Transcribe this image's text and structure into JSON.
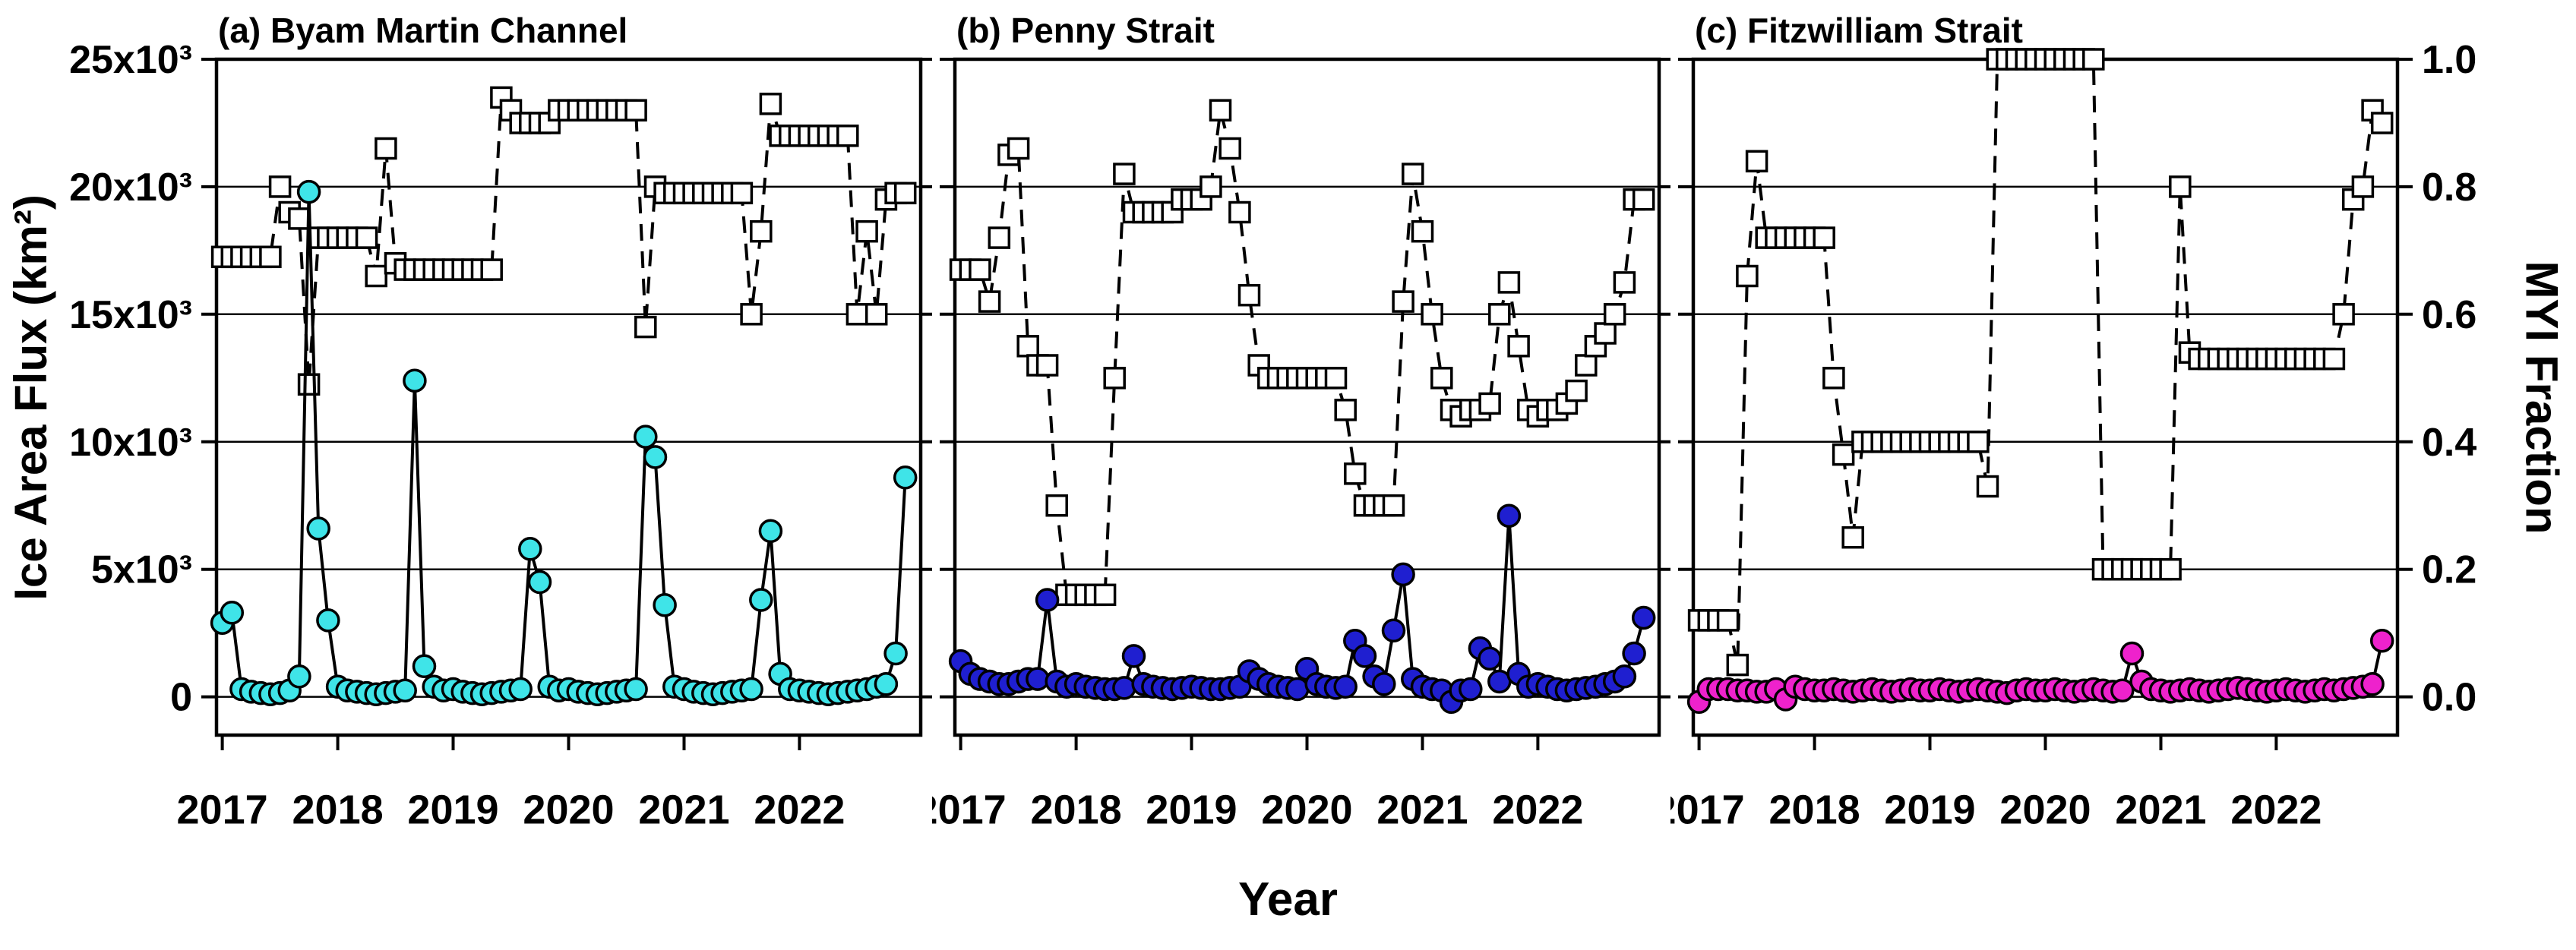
{
  "figure": {
    "left_axis_title": "Ice Area Flux (km²)",
    "right_axis_title": "MYI Fraction",
    "x_axis_title": "Year",
    "background": "#FFFFFF",
    "axis_color": "#000000"
  },
  "chart_data": [
    {
      "type": "line",
      "title": "(a) Byam Martin Channel",
      "x_range": [
        2016.95,
        2023.05
      ],
      "x_start": 2017.0,
      "x_step": 0.083333,
      "x_ticks": [
        2017,
        2018,
        2019,
        2020,
        2021,
        2022
      ],
      "left_axis": {
        "label": "Ice Area Flux (km²)",
        "range": [
          -1500,
          25000
        ],
        "ticks": [
          0,
          5000,
          10000,
          15000,
          20000,
          25000
        ],
        "tick_labels": [
          "0",
          "5x10³",
          "10x10³",
          "15x10³",
          "20x10³",
          "25x10³"
        ]
      },
      "right_axis": {
        "label": "MYI Fraction",
        "range": [
          -0.06,
          1.0
        ],
        "ticks": [
          0,
          0.2,
          0.4,
          0.6,
          0.8,
          1.0
        ],
        "tick_labels": [
          "0.0",
          "0.2",
          "0.4",
          "0.6",
          "0.8",
          "1.0"
        ]
      },
      "series": [
        {
          "name": "Ice Area Flux",
          "axis": "left",
          "marker": "circle",
          "line": "solid",
          "color": "#3FE4E8",
          "values": [
            2900,
            3300,
            300,
            200,
            150,
            100,
            150,
            250,
            800,
            19800,
            6600,
            3000,
            400,
            250,
            200,
            150,
            100,
            150,
            200,
            250,
            12400,
            1200,
            400,
            250,
            300,
            200,
            150,
            100,
            150,
            200,
            250,
            300,
            5800,
            4500,
            400,
            250,
            300,
            200,
            150,
            100,
            150,
            200,
            250,
            300,
            10200,
            9400,
            3600,
            400,
            300,
            200,
            150,
            100,
            150,
            200,
            250,
            300,
            3800,
            6500,
            900,
            300,
            250,
            200,
            150,
            100,
            150,
            200,
            250,
            300,
            400,
            500,
            1700,
            8600
          ]
        },
        {
          "name": "MYI Fraction",
          "axis": "right",
          "marker": "square",
          "line": "dashed",
          "color": "#FFFFFF",
          "values": [
            0.69,
            0.69,
            0.69,
            0.69,
            0.69,
            0.69,
            0.8,
            0.76,
            0.75,
            0.49,
            0.72,
            0.72,
            0.72,
            0.72,
            0.72,
            0.72,
            0.66,
            0.86,
            0.68,
            0.67,
            0.67,
            0.67,
            0.67,
            0.67,
            0.67,
            0.67,
            0.67,
            0.67,
            0.67,
            0.94,
            0.92,
            0.9,
            0.9,
            0.9,
            0.9,
            0.92,
            0.92,
            0.92,
            0.92,
            0.92,
            0.92,
            0.92,
            0.92,
            0.92,
            0.58,
            0.8,
            0.79,
            0.79,
            0.79,
            0.79,
            0.79,
            0.79,
            0.79,
            0.79,
            0.79,
            0.6,
            0.73,
            0.93,
            0.88,
            0.88,
            0.88,
            0.88,
            0.88,
            0.88,
            0.88,
            0.88,
            0.6,
            0.73,
            0.6,
            0.78,
            0.79,
            0.79
          ]
        }
      ]
    },
    {
      "type": "line",
      "title": "(b) Penny Strait",
      "x_range": [
        2016.95,
        2023.05
      ],
      "x_start": 2017.0,
      "x_step": 0.083333,
      "x_ticks": [
        2017,
        2018,
        2019,
        2020,
        2021,
        2022
      ],
      "left_axis": {
        "label": "Ice Area Flux (km²)",
        "range": [
          -1500,
          25000
        ],
        "ticks": [
          0,
          5000,
          10000,
          15000,
          20000,
          25000
        ],
        "tick_labels": [
          "0",
          "5x10³",
          "10x10³",
          "15x10³",
          "20x10³",
          "25x10³"
        ]
      },
      "right_axis": {
        "label": "MYI Fraction",
        "range": [
          -0.06,
          1.0
        ],
        "ticks": [
          0,
          0.2,
          0.4,
          0.6,
          0.8,
          1.0
        ],
        "tick_labels": [
          "0.0",
          "0.2",
          "0.4",
          "0.6",
          "0.8",
          "1.0"
        ]
      },
      "series": [
        {
          "name": "Ice Area Flux",
          "axis": "left",
          "marker": "circle",
          "line": "solid",
          "color": "#1F1FD0",
          "values": [
            1400,
            900,
            700,
            600,
            500,
            500,
            600,
            700,
            700,
            3800,
            600,
            400,
            500,
            400,
            350,
            300,
            300,
            350,
            1600,
            500,
            400,
            350,
            300,
            350,
            400,
            350,
            300,
            300,
            350,
            400,
            1000,
            700,
            500,
            400,
            350,
            300,
            1100,
            500,
            400,
            350,
            400,
            2200,
            1600,
            800,
            500,
            2600,
            4800,
            700,
            400,
            300,
            250,
            -200,
            250,
            300,
            1900,
            1500,
            600,
            7100,
            900,
            400,
            500,
            400,
            300,
            250,
            300,
            350,
            400,
            500,
            600,
            800,
            1700,
            3100
          ]
        },
        {
          "name": "MYI Fraction",
          "axis": "right",
          "marker": "square",
          "line": "dashed",
          "color": "#FFFFFF",
          "values": [
            0.67,
            0.67,
            0.67,
            0.62,
            0.72,
            0.85,
            0.86,
            0.55,
            0.52,
            0.52,
            0.3,
            0.16,
            0.16,
            0.16,
            0.16,
            0.16,
            0.5,
            0.82,
            0.76,
            0.76,
            0.76,
            0.76,
            0.76,
            0.78,
            0.78,
            0.78,
            0.8,
            0.92,
            0.86,
            0.76,
            0.63,
            0.52,
            0.5,
            0.5,
            0.5,
            0.5,
            0.5,
            0.5,
            0.5,
            0.5,
            0.45,
            0.35,
            0.3,
            0.3,
            0.3,
            0.3,
            0.62,
            0.82,
            0.73,
            0.6,
            0.5,
            0.45,
            0.44,
            0.45,
            0.45,
            0.46,
            0.6,
            0.65,
            0.55,
            0.45,
            0.44,
            0.45,
            0.45,
            0.46,
            0.48,
            0.52,
            0.55,
            0.57,
            0.6,
            0.65,
            0.78,
            0.78
          ]
        }
      ]
    },
    {
      "type": "line",
      "title": "(c) Fitzwilliam Strait",
      "x_range": [
        2016.95,
        2023.05
      ],
      "x_start": 2017.0,
      "x_step": 0.083333,
      "x_ticks": [
        2017,
        2018,
        2019,
        2020,
        2021,
        2022
      ],
      "left_axis": {
        "label": "Ice Area Flux (km²)",
        "range": [
          -1500,
          25000
        ],
        "ticks": [
          0,
          5000,
          10000,
          15000,
          20000,
          25000
        ],
        "tick_labels": [
          "0",
          "5x10³",
          "10x10³",
          "15x10³",
          "20x10³",
          "25x10³"
        ]
      },
      "right_axis": {
        "label": "MYI Fraction",
        "range": [
          -0.06,
          1.0
        ],
        "ticks": [
          0,
          0.2,
          0.4,
          0.6,
          0.8,
          1.0
        ],
        "tick_labels": [
          "0.0",
          "0.2",
          "0.4",
          "0.6",
          "0.8",
          "1.0"
        ]
      },
      "series": [
        {
          "name": "Ice Area Flux",
          "axis": "left",
          "marker": "circle",
          "line": "solid",
          "color": "#EE22CC",
          "values": [
            -200,
            300,
            300,
            300,
            250,
            250,
            200,
            200,
            300,
            -100,
            400,
            300,
            250,
            250,
            300,
            250,
            200,
            250,
            300,
            250,
            200,
            250,
            300,
            250,
            250,
            300,
            250,
            200,
            250,
            300,
            250,
            200,
            150,
            250,
            300,
            250,
            250,
            300,
            250,
            200,
            250,
            300,
            250,
            200,
            250,
            1700,
            600,
            300,
            250,
            200,
            250,
            300,
            250,
            200,
            250,
            300,
            350,
            300,
            250,
            200,
            250,
            300,
            250,
            200,
            250,
            300,
            250,
            300,
            350,
            400,
            500,
            2200
          ]
        },
        {
          "name": "MYI Fraction",
          "axis": "right",
          "marker": "square",
          "line": "dashed",
          "color": "#FFFFFF",
          "values": [
            0.12,
            0.12,
            0.12,
            0.12,
            0.05,
            0.66,
            0.84,
            0.72,
            0.72,
            0.72,
            0.72,
            0.72,
            0.72,
            0.72,
            0.5,
            0.38,
            0.25,
            0.4,
            0.4,
            0.4,
            0.4,
            0.4,
            0.4,
            0.4,
            0.4,
            0.4,
            0.4,
            0.4,
            0.4,
            0.4,
            0.33,
            1.0,
            1.0,
            1.0,
            1.0,
            1.0,
            1.0,
            1.0,
            1.0,
            1.0,
            1.0,
            1.0,
            0.2,
            0.2,
            0.2,
            0.2,
            0.2,
            0.2,
            0.2,
            0.2,
            0.8,
            0.54,
            0.53,
            0.53,
            0.53,
            0.53,
            0.53,
            0.53,
            0.53,
            0.53,
            0.53,
            0.53,
            0.53,
            0.53,
            0.53,
            0.53,
            0.53,
            0.6,
            0.78,
            0.8,
            0.92,
            0.9
          ]
        }
      ]
    }
  ]
}
